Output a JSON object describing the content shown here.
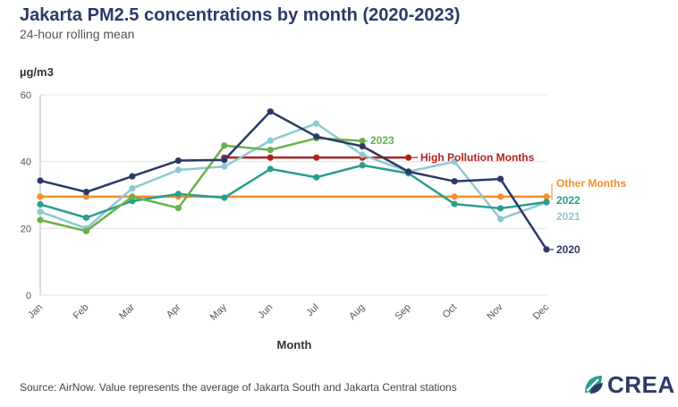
{
  "title": "Jakarta PM2.5 concentrations by month (2020-2023)",
  "subtitle": "24-hour rolling mean",
  "source": "Source: AirNow. Value represents the average of Jakarta South and Jakarta Central stations",
  "logo": {
    "text": "CREA",
    "icon": "crea-leaf-icon"
  },
  "chart_data": {
    "type": "line",
    "categories": [
      "Jan",
      "Feb",
      "Mar",
      "Apr",
      "May",
      "Jun",
      "Jul",
      "Aug",
      "Sep",
      "Oct",
      "Nov",
      "Dec"
    ],
    "ylabel": "µg/m3",
    "xlabel": "Month",
    "ylim": [
      0,
      60
    ],
    "yticks": [
      0,
      20,
      40,
      60
    ],
    "grid": true,
    "series": [
      {
        "name": "2020",
        "color": "#2c3a66",
        "values": [
          34.3,
          30.9,
          35.6,
          40.3,
          40.5,
          55.0,
          47.5,
          44.6,
          37.0,
          34.1,
          34.8,
          13.7
        ]
      },
      {
        "name": "2021",
        "color": "#8ec9d2",
        "values": [
          25.0,
          20.0,
          32.0,
          37.5,
          38.5,
          46.3,
          51.4,
          42.0,
          37.0,
          40.0,
          22.8,
          27.8
        ]
      },
      {
        "name": "2022",
        "color": "#2a9d8f",
        "values": [
          27.2,
          23.2,
          28.2,
          30.3,
          29.2,
          37.8,
          35.3,
          38.9,
          36.5,
          27.3,
          26.0,
          27.9
        ]
      },
      {
        "name": "2023",
        "color": "#6ab04c",
        "values": [
          22.5,
          19.2,
          29.5,
          26.1,
          44.8,
          43.5,
          47.0,
          46.2,
          null,
          null,
          null,
          null
        ]
      },
      {
        "name": "High Pollution Months",
        "color": "#b22222",
        "values": [
          null,
          null,
          null,
          null,
          41.2,
          41.2,
          41.2,
          41.2,
          41.2,
          null,
          null,
          null
        ]
      },
      {
        "name": "Other Months",
        "color": "#f28e2b",
        "values": [
          29.5,
          29.5,
          29.5,
          29.5,
          null,
          null,
          null,
          null,
          null,
          29.5,
          29.5,
          29.5
        ]
      }
    ]
  }
}
